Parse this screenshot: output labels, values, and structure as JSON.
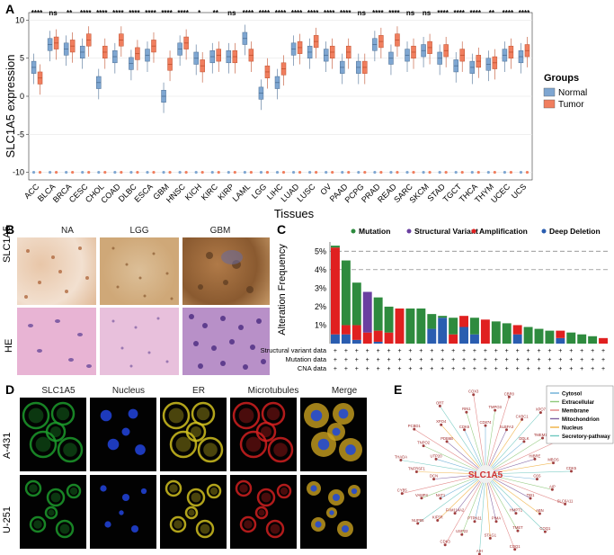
{
  "panels": {
    "a": "A",
    "b": "B",
    "c": "C",
    "d": "D",
    "e": "E"
  },
  "panel_a": {
    "ylabel": "SLC1A5 expression",
    "xlabel": "Tissues",
    "legend_title": "Groups",
    "legend_items": [
      {
        "name": "Normal",
        "color": "#7ea6d1"
      },
      {
        "name": "Tumor",
        "color": "#f07e5e"
      }
    ],
    "y_ticks": [
      "10",
      "5",
      "0",
      "-5",
      "-10"
    ]
  },
  "chart_data": [
    {
      "type": "box",
      "title": "",
      "xlabel": "Tissues",
      "ylabel": "SLC1A5 expression",
      "ylim": [
        -11,
        11
      ],
      "categories": [
        "ACC",
        "BLCA",
        "BRCA",
        "CESC",
        "CHOL",
        "COAD",
        "DLBC",
        "ESCA",
        "GBM",
        "HNSC",
        "KICH",
        "KIRC",
        "KIRP",
        "LAML",
        "LGG",
        "LIHC",
        "LUAD",
        "LUSC",
        "OV",
        "PAAD",
        "PCPG",
        "PRAD",
        "READ",
        "SARC",
        "SKCM",
        "STAD",
        "TGCT",
        "THCA",
        "THYM",
        "UCEC",
        "UCS"
      ],
      "significance": [
        "****",
        "ns",
        "**",
        "****",
        "****",
        "****",
        "****",
        "****",
        "****",
        "****",
        "*",
        "**",
        "ns",
        "****",
        "****",
        "****",
        "****",
        "****",
        "****",
        "****",
        "ns",
        "****",
        "****",
        "ns",
        "ns",
        "****",
        "****",
        "****",
        "**",
        "****",
        "****"
      ],
      "series": [
        {
          "name": "Normal",
          "medians": [
            3.8,
            6.8,
            6.2,
            5.8,
            1.8,
            5.2,
            4.3,
            5.4,
            0.0,
            6.2,
            5.0,
            5.2,
            5.2,
            7.6,
            0.4,
            1.8,
            6.2,
            5.8,
            5.4,
            3.8,
            3.8,
            6.8,
            5.0,
            5.4,
            6.0,
            5.0,
            4.0,
            3.8,
            4.2,
            5.4,
            5.2
          ]
        },
        {
          "name": "Tumor",
          "medians": [
            2.4,
            7.0,
            6.6,
            7.4,
            5.8,
            7.4,
            5.6,
            6.6,
            4.2,
            7.0,
            4.0,
            5.4,
            5.2,
            5.4,
            3.2,
            3.6,
            6.4,
            7.2,
            5.8,
            5.8,
            3.8,
            7.2,
            7.4,
            5.8,
            6.4,
            6.0,
            5.4,
            4.6,
            4.4,
            5.8,
            6.0
          ]
        }
      ]
    },
    {
      "type": "bar",
      "title": "",
      "ylabel": "Alteration Frequency",
      "ylim": [
        0,
        5.5
      ],
      "y_ticks": [
        "5%",
        "4%",
        "3%",
        "2%",
        "1%"
      ],
      "legend": [
        "Mutation",
        "Structural Variant",
        "Amplification",
        "Deep Deletion"
      ],
      "colors": {
        "Mutation": "#2e8b3e",
        "Structural Variant": "#6a3fa0",
        "Amplification": "#e02020",
        "Deep Deletion": "#2a5db0"
      },
      "stacks": [
        {
          "Mutation": 0.1,
          "Amplification": 4.7,
          "Deep Deletion": 0.5
        },
        {
          "Mutation": 3.5,
          "Amplification": 0.5,
          "Deep Deletion": 0.5
        },
        {
          "Mutation": 2.3,
          "Amplification": 0.8,
          "Deep Deletion": 0.2
        },
        {
          "Structural Variant": 2.2,
          "Amplification": 0.6
        },
        {
          "Mutation": 1.8,
          "Deep Deletion": 0.1,
          "Amplification": 0.6
        },
        {
          "Mutation": 1.4,
          "Amplification": 0.6
        },
        {
          "Amplification": 1.9
        },
        {
          "Mutation": 1.9
        },
        {
          "Mutation": 1.9
        },
        {
          "Mutation": 0.8,
          "Deep Deletion": 0.8
        },
        {
          "Mutation": 0.1,
          "Deep Deletion": 1.4
        },
        {
          "Mutation": 0.9,
          "Amplification": 0.5
        },
        {
          "Deep Deletion": 0.9,
          "Amplification": 0.6
        },
        {
          "Mutation": 0.9,
          "Deep Deletion": 0.5
        },
        {
          "Amplification": 1.3
        },
        {
          "Mutation": 1.2
        },
        {
          "Mutation": 1.1
        },
        {
          "Deep Deletion": 0.5,
          "Amplification": 0.5
        },
        {
          "Mutation": 0.9
        },
        {
          "Mutation": 0.8
        },
        {
          "Mutation": 0.7
        },
        {
          "Deep Deletion": 0.3,
          "Amplification": 0.4
        },
        {
          "Mutation": 0.6
        },
        {
          "Mutation": 0.5
        },
        {
          "Mutation": 0.4
        },
        {
          "Amplification": 0.3
        }
      ],
      "track_labels": [
        "Structural variant data",
        "Mutation data",
        "CNA data"
      ]
    }
  ],
  "panel_b": {
    "col_titles": [
      "NA",
      "LGG",
      "GBM"
    ],
    "row_titles": [
      "SLC1A5",
      "HE"
    ]
  },
  "panel_d": {
    "col_titles": [
      "SLC1A5",
      "Nucleus",
      "ER",
      "Microtubules",
      "Merge"
    ],
    "row_titles": [
      "A-431",
      "U-251"
    ]
  },
  "panel_e": {
    "center": "SLC1A5",
    "legend": [
      {
        "name": "Cytosol",
        "color": "#6aaed6"
      },
      {
        "name": "Extracellular",
        "color": "#8fc87a"
      },
      {
        "name": "Membrane",
        "color": "#e08080"
      },
      {
        "name": "Mitochondrion",
        "color": "#8060a0"
      },
      {
        "name": "Nucleus",
        "color": "#f0b040"
      },
      {
        "name": "Secretory-pathway",
        "color": "#70c8c0"
      }
    ],
    "nodes": [
      "CD874",
      "TMPO3",
      "CBR0",
      "SLBFA3",
      "CXBC1",
      "XPO7",
      "DDLK",
      "TMEM158",
      "BAALT",
      "HIBRE",
      "MBOS",
      "CDK5",
      "C6S",
      "AIP",
      "SLC6A11",
      "TIB1",
      "ABN",
      "COQ1",
      "HMPT1",
      "TMET",
      "COQ1",
      "PIMA",
      "STAG1",
      "AIH",
      "PTPN11",
      "USP22",
      "CDK3",
      "FAM114A2",
      "KIF5R",
      "NUP85",
      "NAT1",
      "VAMP4",
      "CYB5",
      "DCN",
      "TNFRSF1",
      "THADA",
      "UTP20",
      "TNPO2",
      "PCBD1",
      "PDB6B",
      "XPO4",
      "ORT",
      "CDK6",
      "RIN1",
      "COX3"
    ]
  }
}
